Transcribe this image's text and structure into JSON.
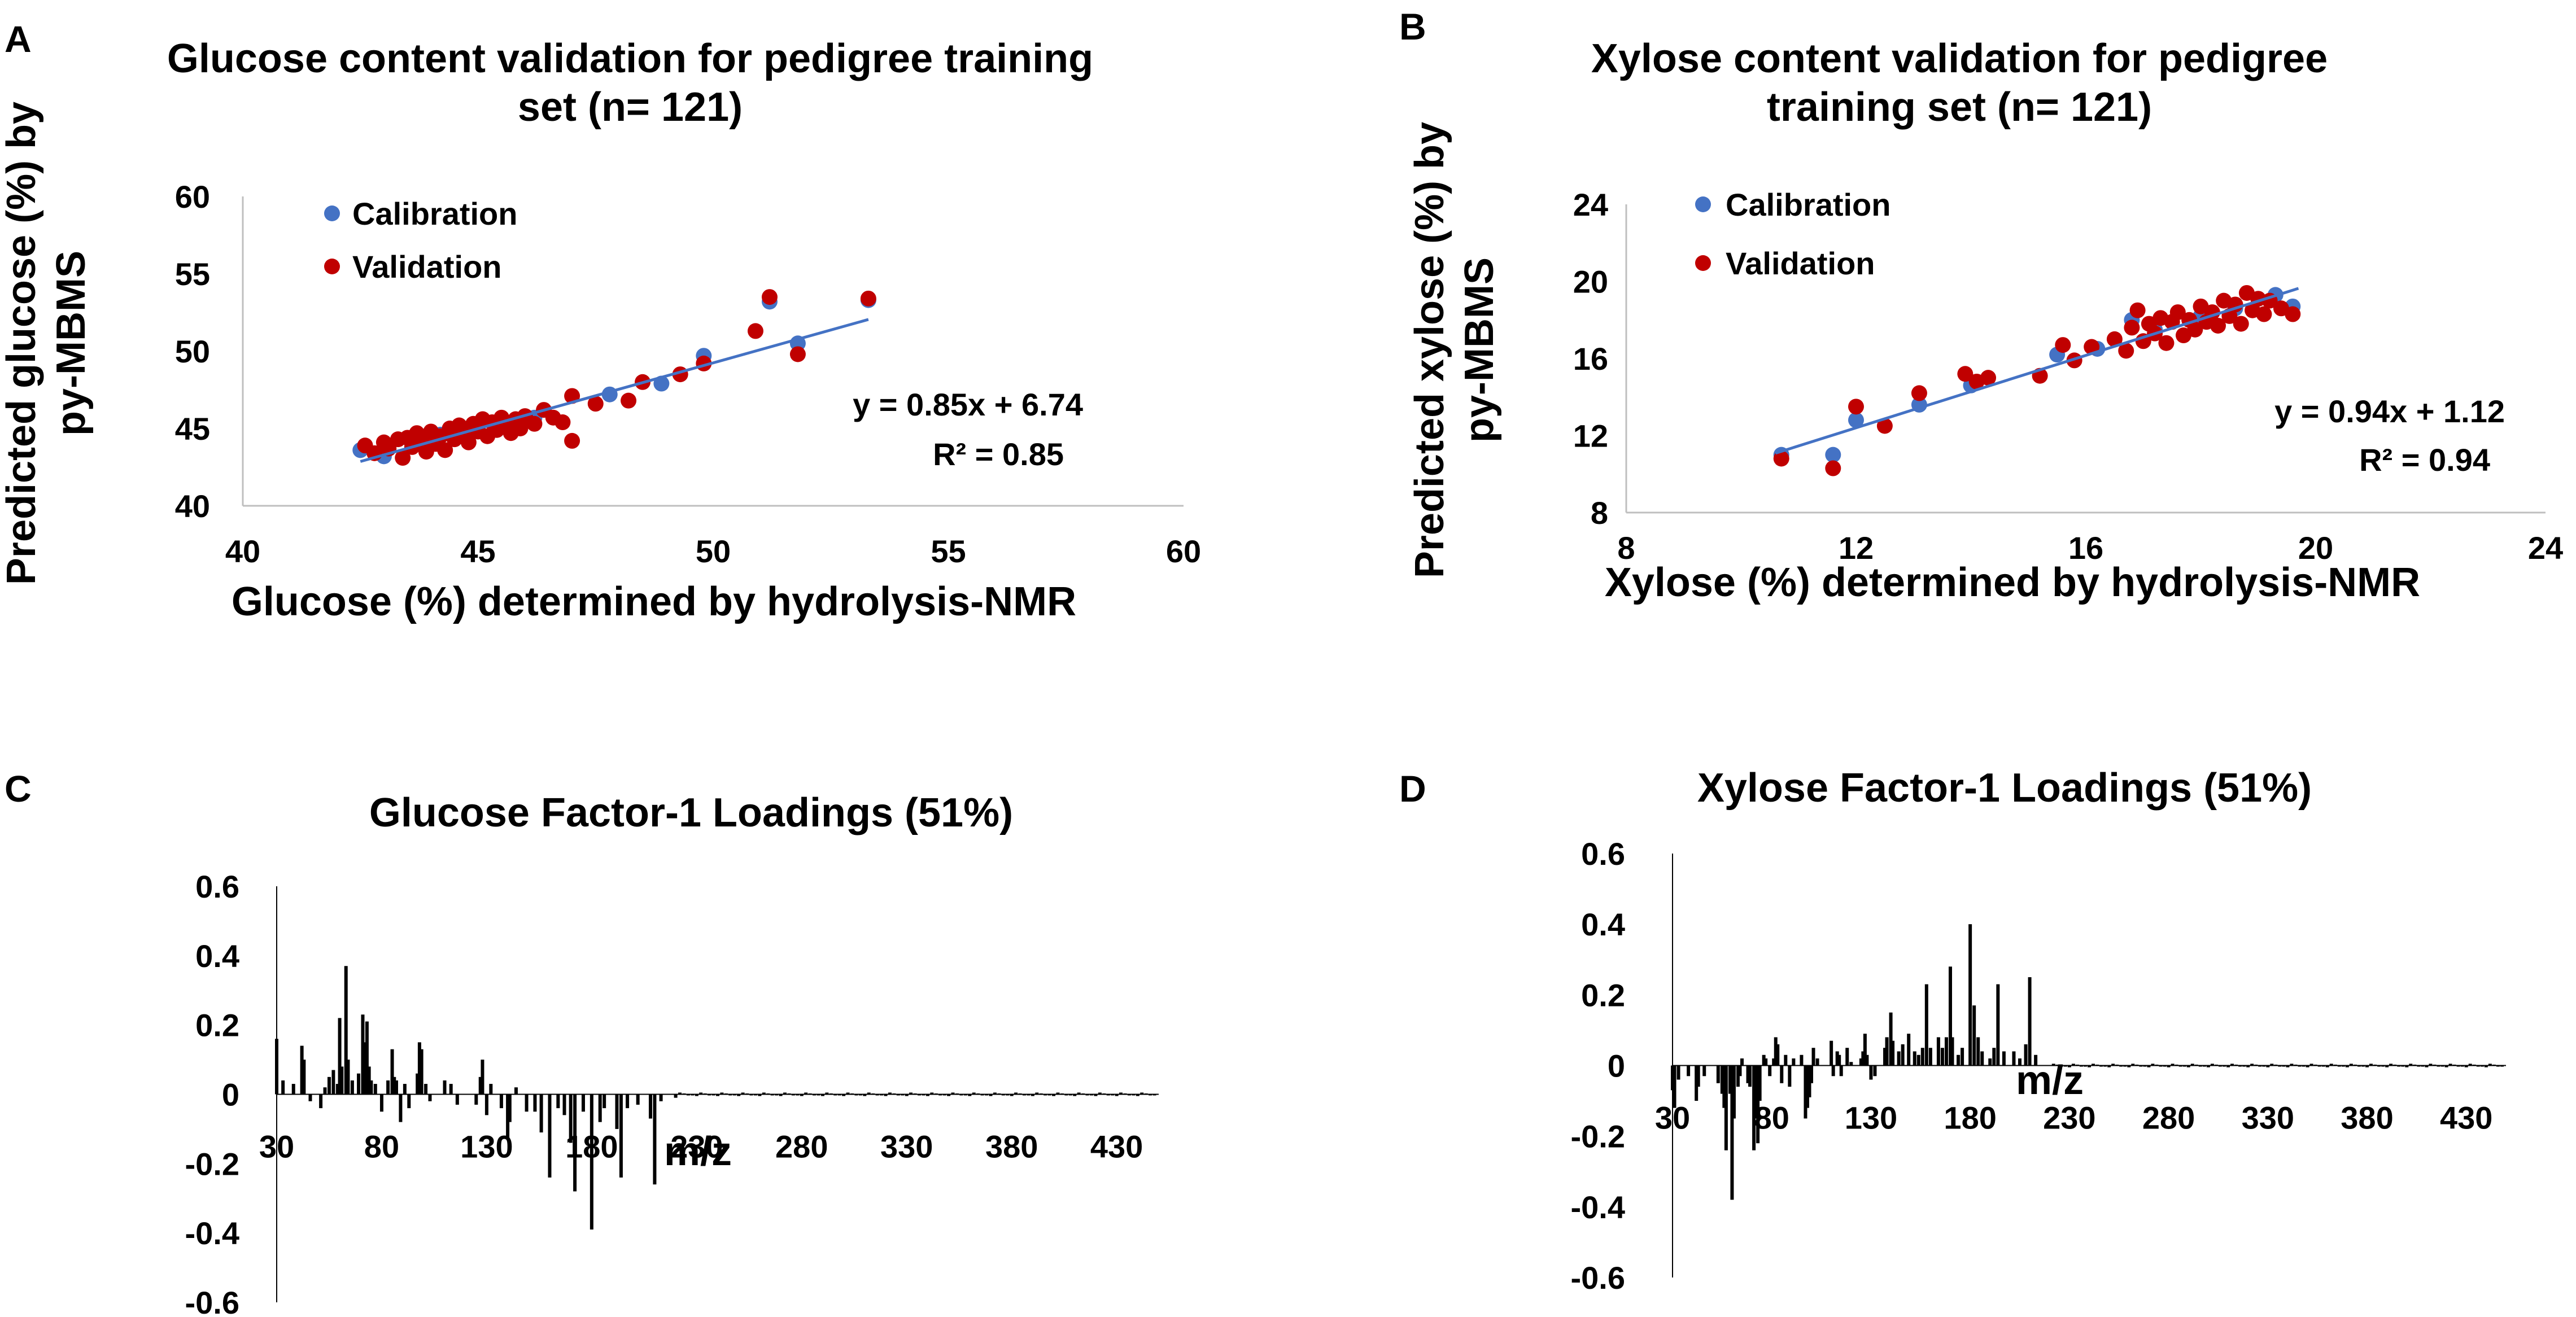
{
  "panel_labels": [
    "A",
    "B",
    "C",
    "D"
  ],
  "colors": {
    "calibration": "#4472C4",
    "validation": "#C00000",
    "trend": "#4472C4",
    "bar": "#000000"
  },
  "chart_data": [
    {
      "id": "A",
      "type": "scatter",
      "title_lines": [
        "Glucose content validation for pedigree training",
        "set (n= 121)"
      ],
      "xlabel": "Glucose (%) determined by hydrolysis-NMR",
      "ylabel_lines": [
        "Predicted glucose (%) by",
        "py-MBMS"
      ],
      "xlim": [
        40,
        60
      ],
      "ylim": [
        40,
        60
      ],
      "xticks": [
        40,
        45,
        50,
        55,
        60
      ],
      "yticks": [
        40,
        45,
        50,
        55,
        60
      ],
      "legend": [
        "Calibration",
        "Validation"
      ],
      "equation": "y = 0.85x + 6.74",
      "r2": "R² = 0.85",
      "slope": 0.85,
      "intercept": 6.74,
      "fit_x_range": [
        42.5,
        53.3
      ],
      "series": [
        {
          "name": "Calibration",
          "points": [
            [
              42.5,
              43.6
            ],
            [
              43.0,
              43.2
            ],
            [
              43.6,
              44.0
            ],
            [
              44.2,
              44.6
            ],
            [
              45.0,
              45.1
            ],
            [
              45.6,
              45.3
            ],
            [
              46.2,
              45.7
            ],
            [
              47.8,
              47.2
            ],
            [
              48.9,
              47.9
            ],
            [
              49.8,
              49.7
            ],
            [
              51.2,
              53.2
            ],
            [
              51.8,
              50.5
            ],
            [
              53.3,
              53.3
            ]
          ]
        },
        {
          "name": "Validation",
          "points": [
            [
              42.6,
              43.9
            ],
            [
              42.8,
              43.4
            ],
            [
              43.0,
              44.1
            ],
            [
              43.1,
              43.7
            ],
            [
              43.3,
              44.3
            ],
            [
              43.4,
              43.1
            ],
            [
              43.5,
              44.4
            ],
            [
              43.6,
              43.8
            ],
            [
              43.7,
              44.7
            ],
            [
              43.8,
              44.2
            ],
            [
              43.9,
              43.5
            ],
            [
              44.0,
              44.8
            ],
            [
              44.1,
              44.0
            ],
            [
              44.2,
              44.5
            ],
            [
              44.3,
              43.6
            ],
            [
              44.4,
              45.0
            ],
            [
              44.5,
              44.3
            ],
            [
              44.6,
              45.2
            ],
            [
              44.7,
              44.6
            ],
            [
              44.8,
              44.1
            ],
            [
              44.9,
              45.3
            ],
            [
              45.0,
              44.8
            ],
            [
              45.1,
              45.6
            ],
            [
              45.2,
              44.5
            ],
            [
              45.3,
              45.4
            ],
            [
              45.4,
              44.9
            ],
            [
              45.5,
              45.7
            ],
            [
              45.6,
              45.2
            ],
            [
              45.7,
              44.7
            ],
            [
              45.8,
              45.6
            ],
            [
              45.9,
              45.0
            ],
            [
              46.0,
              45.8
            ],
            [
              46.2,
              45.3
            ],
            [
              46.4,
              46.2
            ],
            [
              46.6,
              45.7
            ],
            [
              46.8,
              45.4
            ],
            [
              47.0,
              47.1
            ],
            [
              47.0,
              44.2
            ],
            [
              47.5,
              46.6
            ],
            [
              48.2,
              46.8
            ],
            [
              48.5,
              48.0
            ],
            [
              49.3,
              48.5
            ],
            [
              49.8,
              49.2
            ],
            [
              50.9,
              51.3
            ],
            [
              51.2,
              53.5
            ],
            [
              51.8,
              49.8
            ],
            [
              53.3,
              53.4
            ]
          ]
        }
      ]
    },
    {
      "id": "B",
      "type": "scatter",
      "title_lines": [
        "Xylose content validation for pedigree",
        "training set (n= 121)"
      ],
      "xlabel": "Xylose (%) determined by hydrolysis-NMR",
      "ylabel_lines": [
        "Predicted xylose (%) by",
        "py-MBMS"
      ],
      "xlim": [
        8,
        24
      ],
      "ylim": [
        8,
        24
      ],
      "xticks": [
        8,
        12,
        16,
        20,
        24
      ],
      "yticks": [
        8,
        12,
        16,
        20,
        24
      ],
      "legend": [
        "Calibration",
        "Validation"
      ],
      "equation": "y = 0.94x + 1.12",
      "r2": "R² = 0.94",
      "slope": 0.94,
      "intercept": 1.12,
      "fit_x_range": [
        10.6,
        19.7
      ],
      "series": [
        {
          "name": "Calibration",
          "points": [
            [
              10.7,
              11.0
            ],
            [
              11.6,
              11.0
            ],
            [
              12.0,
              12.8
            ],
            [
              13.1,
              13.6
            ],
            [
              14.0,
              14.6
            ],
            [
              15.5,
              16.2
            ],
            [
              16.2,
              16.5
            ],
            [
              16.8,
              18.0
            ],
            [
              17.2,
              17.5
            ],
            [
              18.0,
              18.2
            ],
            [
              18.6,
              18.6
            ],
            [
              19.3,
              19.3
            ],
            [
              19.6,
              18.7
            ]
          ]
        },
        {
          "name": "Validation",
          "points": [
            [
              10.7,
              10.8
            ],
            [
              11.6,
              10.3
            ],
            [
              12.0,
              13.5
            ],
            [
              12.5,
              12.5
            ],
            [
              13.1,
              14.2
            ],
            [
              13.9,
              15.2
            ],
            [
              14.1,
              14.8
            ],
            [
              14.3,
              15.0
            ],
            [
              15.2,
              15.1
            ],
            [
              15.6,
              16.7
            ],
            [
              15.8,
              15.9
            ],
            [
              16.1,
              16.6
            ],
            [
              16.5,
              17.0
            ],
            [
              16.7,
              16.4
            ],
            [
              16.8,
              17.6
            ],
            [
              16.9,
              18.5
            ],
            [
              17.0,
              16.9
            ],
            [
              17.1,
              17.8
            ],
            [
              17.2,
              17.3
            ],
            [
              17.3,
              18.1
            ],
            [
              17.4,
              16.8
            ],
            [
              17.5,
              17.9
            ],
            [
              17.6,
              18.4
            ],
            [
              17.7,
              17.2
            ],
            [
              17.8,
              18.0
            ],
            [
              17.9,
              17.5
            ],
            [
              18.0,
              18.7
            ],
            [
              18.1,
              17.9
            ],
            [
              18.2,
              18.4
            ],
            [
              18.3,
              17.7
            ],
            [
              18.4,
              19.0
            ],
            [
              18.5,
              18.2
            ],
            [
              18.6,
              18.8
            ],
            [
              18.7,
              17.8
            ],
            [
              18.8,
              19.4
            ],
            [
              18.9,
              18.5
            ],
            [
              19.0,
              19.1
            ],
            [
              19.1,
              18.3
            ],
            [
              19.2,
              19.0
            ],
            [
              19.4,
              18.6
            ],
            [
              19.6,
              18.3
            ]
          ]
        }
      ]
    },
    {
      "id": "C",
      "type": "bar",
      "title": "Glucose Factor-1 Loadings (51%)",
      "xlabel": "m/z",
      "ylabel": "",
      "xlim": [
        30,
        450
      ],
      "ylim": [
        -0.6,
        0.6
      ],
      "xticks": [
        30,
        80,
        130,
        180,
        230,
        280,
        330,
        380,
        430
      ],
      "yticks": [
        0.6,
        0.4,
        0.2,
        0,
        -0.2,
        -0.4,
        -0.6
      ],
      "peaks": [
        [
          30,
          0.16
        ],
        [
          33,
          0.04
        ],
        [
          38,
          0.03
        ],
        [
          42,
          0.14
        ],
        [
          43,
          0.1
        ],
        [
          46,
          -0.02
        ],
        [
          51,
          -0.04
        ],
        [
          53,
          0.02
        ],
        [
          55,
          0.05
        ],
        [
          57,
          0.07
        ],
        [
          59,
          0.03
        ],
        [
          60,
          0.22
        ],
        [
          61,
          0.08
        ],
        [
          63,
          0.37
        ],
        [
          64,
          0.1
        ],
        [
          66,
          0.04
        ],
        [
          69,
          0.06
        ],
        [
          71,
          0.23
        ],
        [
          72,
          0.15
        ],
        [
          73,
          0.21
        ],
        [
          74,
          0.08
        ],
        [
          75,
          0.04
        ],
        [
          77,
          0.03
        ],
        [
          80,
          -0.05
        ],
        [
          83,
          0.04
        ],
        [
          85,
          0.13
        ],
        [
          86,
          0.05
        ],
        [
          87,
          0.04
        ],
        [
          89,
          -0.08
        ],
        [
          91,
          0.03
        ],
        [
          93,
          -0.04
        ],
        [
          97,
          0.06
        ],
        [
          98,
          0.15
        ],
        [
          99,
          0.13
        ],
        [
          101,
          0.03
        ],
        [
          103,
          -0.02
        ],
        [
          110,
          0.04
        ],
        [
          113,
          0.03
        ],
        [
          116,
          -0.03
        ],
        [
          125,
          -0.03
        ],
        [
          127,
          0.05
        ],
        [
          128,
          0.1
        ],
        [
          130,
          -0.06
        ],
        [
          132,
          0.03
        ],
        [
          137,
          -0.04
        ],
        [
          140,
          -0.13
        ],
        [
          141,
          -0.08
        ],
        [
          144,
          0.02
        ],
        [
          149,
          -0.05
        ],
        [
          153,
          -0.05
        ],
        [
          156,
          -0.11
        ],
        [
          160,
          -0.24
        ],
        [
          164,
          -0.04
        ],
        [
          167,
          -0.06
        ],
        [
          170,
          -0.14
        ],
        [
          172,
          -0.28
        ],
        [
          176,
          -0.05
        ],
        [
          180,
          -0.39
        ],
        [
          184,
          -0.08
        ],
        [
          186,
          -0.04
        ],
        [
          192,
          -0.1
        ],
        [
          194,
          -0.24
        ],
        [
          197,
          -0.04
        ],
        [
          202,
          -0.03
        ],
        [
          208,
          -0.07
        ],
        [
          210,
          -0.26
        ],
        [
          213,
          -0.02
        ],
        [
          220,
          -0.01
        ]
      ]
    },
    {
      "id": "D",
      "type": "bar",
      "title": "Xylose Factor-1 Loadings (51%)",
      "xlabel": "m/z",
      "ylabel": "",
      "xlim": [
        30,
        450
      ],
      "ylim": [
        -0.6,
        0.6
      ],
      "xticks": [
        30,
        80,
        130,
        180,
        230,
        280,
        330,
        380,
        430
      ],
      "yticks": [
        0.6,
        0.4,
        0.2,
        0,
        -0.2,
        -0.4,
        -0.6
      ],
      "peaks": [
        [
          30,
          -0.07
        ],
        [
          31,
          -0.12
        ],
        [
          33,
          -0.04
        ],
        [
          38,
          -0.03
        ],
        [
          42,
          -0.1
        ],
        [
          43,
          -0.06
        ],
        [
          46,
          -0.03
        ],
        [
          53,
          -0.05
        ],
        [
          55,
          -0.08
        ],
        [
          56,
          -0.12
        ],
        [
          57,
          -0.24
        ],
        [
          59,
          -0.08
        ],
        [
          60,
          -0.38
        ],
        [
          61,
          -0.15
        ],
        [
          63,
          -0.06
        ],
        [
          64,
          -0.03
        ],
        [
          65,
          0.02
        ],
        [
          68,
          -0.05
        ],
        [
          69,
          -0.06
        ],
        [
          71,
          -0.24
        ],
        [
          72,
          -0.15
        ],
        [
          73,
          -0.22
        ],
        [
          74,
          -0.1
        ],
        [
          76,
          0.03
        ],
        [
          77,
          0.02
        ],
        [
          79,
          -0.03
        ],
        [
          81,
          0.02
        ],
        [
          82,
          0.08
        ],
        [
          83,
          0.06
        ],
        [
          85,
          -0.05
        ],
        [
          87,
          0.03
        ],
        [
          89,
          -0.06
        ],
        [
          91,
          0.02
        ],
        [
          95,
          0.03
        ],
        [
          97,
          -0.15
        ],
        [
          98,
          -0.12
        ],
        [
          99,
          -0.09
        ],
        [
          100,
          -0.05
        ],
        [
          101,
          0.05
        ],
        [
          103,
          0.02
        ],
        [
          110,
          0.07
        ],
        [
          111,
          -0.03
        ],
        [
          113,
          0.04
        ],
        [
          114,
          0.03
        ],
        [
          115,
          -0.03
        ],
        [
          118,
          0.05
        ],
        [
          120,
          0.01
        ],
        [
          125,
          0.02
        ],
        [
          126,
          0.04
        ],
        [
          127,
          0.09
        ],
        [
          128,
          0.03
        ],
        [
          130,
          -0.04
        ],
        [
          132,
          -0.03
        ],
        [
          137,
          0.05
        ],
        [
          138,
          0.08
        ],
        [
          140,
          0.15
        ],
        [
          141,
          0.07
        ],
        [
          144,
          0.04
        ],
        [
          146,
          0.06
        ],
        [
          149,
          0.09
        ],
        [
          152,
          0.04
        ],
        [
          154,
          0.03
        ],
        [
          156,
          0.05
        ],
        [
          158,
          0.23
        ],
        [
          160,
          0.05
        ],
        [
          164,
          0.08
        ],
        [
          166,
          0.05
        ],
        [
          168,
          0.08
        ],
        [
          170,
          0.28
        ],
        [
          171,
          0.08
        ],
        [
          174,
          0.03
        ],
        [
          176,
          0.05
        ],
        [
          180,
          0.4
        ],
        [
          182,
          0.17
        ],
        [
          184,
          0.08
        ],
        [
          186,
          0.04
        ],
        [
          190,
          0.02
        ],
        [
          192,
          0.05
        ],
        [
          194,
          0.23
        ],
        [
          197,
          0.04
        ],
        [
          202,
          0.04
        ],
        [
          205,
          0.02
        ],
        [
          208,
          0.06
        ],
        [
          210,
          0.25
        ],
        [
          213,
          0.03
        ]
      ]
    }
  ]
}
